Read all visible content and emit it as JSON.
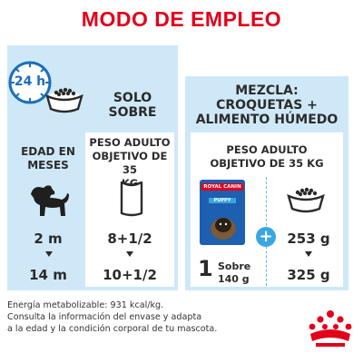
{
  "title": "MODO DE EMPLEO",
  "clock_label": "24 h",
  "solo": {
    "line1": "SOLO",
    "line2": "SOBRE"
  },
  "age_header": {
    "line1": "EDAD EN",
    "line2": "MESES"
  },
  "adult_weight": {
    "line1": "PESO ADULTO",
    "line2": "OBJETIVO DE 35",
    "line3": "KG"
  },
  "rows": [
    {
      "age": "2 m",
      "solo_value": "8+1/2",
      "mixed_dry": "253 g"
    },
    {
      "age": "14 m",
      "solo_value": "10+1/2",
      "mixed_dry": "325 g"
    }
  ],
  "mix": {
    "line1": "MEZCLA:",
    "line2": "CROQUETAS +",
    "line3": "ALIMENTO HÚMEDO",
    "weight_line1": "PESO ADULTO",
    "weight_line2": "OBJETIVO DE 35 KG",
    "plus": "+",
    "pouch_count": "1",
    "pouch_label": "Sobre",
    "pouch_weight": "140 g"
  },
  "pouch": {
    "brand": "ROYAL CANIN",
    "variant": "PUPPY"
  },
  "footer": {
    "line1": "Energía metabolizable: 931 kcal/kg.",
    "line2": "Consulta la información del envase y adapta",
    "line3": "a la edad y la condición corporal de tu mascota."
  },
  "colors": {
    "accent": "#e2001a",
    "panel": "#cfe8f7",
    "blue": "#1d6fb8",
    "light_blue": "#3aa6e0"
  }
}
